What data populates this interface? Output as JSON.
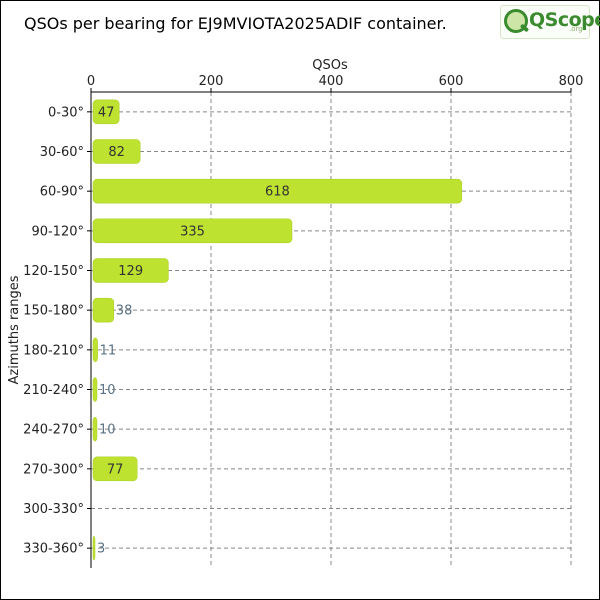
{
  "title": "QSOs per bearing for EJ9MVIOTA2025ADIF container.",
  "logo": {
    "word": "QScope",
    "suffix": ".org"
  },
  "colors": {
    "bar": "#bde22f",
    "bar_edge": "#a8cc20",
    "grid": "#888888",
    "inner_label": "#333333",
    "outer_label": "#5a7184"
  },
  "chart_data": {
    "type": "bar",
    "orientation": "horizontal",
    "title": "QSOs per bearing for EJ9MVIOTA2025ADIF container.",
    "xlabel": "QSOs",
    "ylabel": "Azimuths ranges",
    "xlim": [
      0,
      800
    ],
    "xticks": [
      0,
      200,
      400,
      600,
      800
    ],
    "grid": true,
    "categories": [
      "0-30°",
      "30-60°",
      "60-90°",
      "90-120°",
      "120-150°",
      "150-180°",
      "180-210°",
      "210-240°",
      "240-270°",
      "270-300°",
      "300-330°",
      "330-360°"
    ],
    "values": [
      47,
      82,
      618,
      335,
      129,
      38,
      11,
      10,
      10,
      77,
      0,
      3
    ],
    "value_labels": [
      "47",
      "82",
      "618",
      "335",
      "129",
      "38",
      "11",
      "10",
      "10",
      "77",
      "",
      "3"
    ]
  }
}
